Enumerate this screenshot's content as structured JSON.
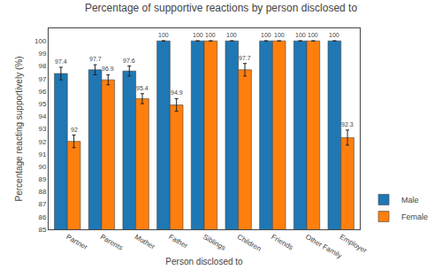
{
  "chart_data": {
    "type": "bar",
    "title": "Percentage of supportive reactions by person disclosed to",
    "xlabel": "Person disclosed to",
    "ylabel": "Percentage reacting supportively (%)",
    "categories": [
      "Partner",
      "Parents",
      "Mother",
      "Father",
      "Siblings",
      "Children",
      "Friends",
      "Other Family",
      "Employer"
    ],
    "series": [
      {
        "name": "Male",
        "values": [
          97.4,
          97.7,
          97.6,
          100,
          100,
          100,
          100,
          100,
          100
        ],
        "errors": [
          0.5,
          0.4,
          0.4,
          0,
          0,
          0,
          0,
          0,
          0
        ]
      },
      {
        "name": "Female",
        "values": [
          92,
          96.9,
          95.4,
          94.9,
          100,
          97.7,
          100,
          100,
          92.3
        ],
        "errors": [
          0.5,
          0.4,
          0.4,
          0.5,
          0,
          0.5,
          0,
          0,
          0.6
        ]
      }
    ],
    "ylim": [
      85,
      101
    ],
    "yticks": [
      85,
      86,
      87,
      88,
      89,
      90,
      91,
      92,
      93,
      94,
      95,
      96,
      97,
      98,
      99,
      100
    ],
    "grid": false,
    "legend": "lower right",
    "data_labels": true
  }
}
